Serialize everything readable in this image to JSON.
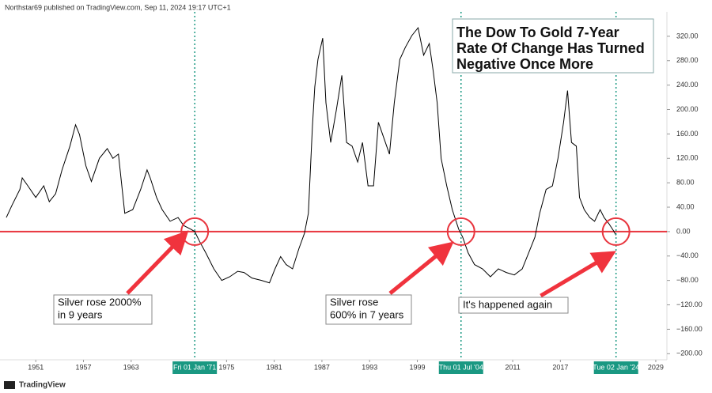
{
  "header": "Northstar69 published on TradingView.com, Sep 11, 2024 19:17 UTC+1",
  "footer": "TradingView",
  "chart_data": {
    "type": "line",
    "title": [
      "The Dow To Gold 7-Year",
      "Rate Of Change Has Turned",
      "Negative Once More"
    ],
    "color": "#000000",
    "x": [
      1947.3,
      1948,
      1949,
      1949.3,
      1950,
      1951,
      1952,
      1952.7,
      1953.5,
      1954.3,
      1955.3,
      1956,
      1956.5,
      1957.3,
      1958,
      1959,
      1960,
      1960.7,
      1961.4,
      1962.2,
      1963.2,
      1964.2,
      1965,
      1965.4,
      1966.2,
      1966.9,
      1967.9,
      1968.9,
      1969.6,
      1970.5,
      1971,
      1971.6,
      1972.4,
      1973.4,
      1974.4,
      1975.4,
      1976.4,
      1977.2,
      1978.2,
      1979.4,
      1980.4,
      1981.1,
      1981.8,
      1982.5,
      1983.3,
      1984.1,
      1984.8,
      1985.3,
      1985.8,
      1986.1,
      1986.5,
      1987.1,
      1987.5,
      1988.1,
      1988.8,
      1989.5,
      1990.1,
      1990.8,
      1991.5,
      1992.1,
      1992.8,
      1993.5,
      1994.1,
      1994.8,
      1995.5,
      1996.1,
      1996.8,
      1997.5,
      1998.3,
      1999.1,
      1999.8,
      2000.5,
      2001,
      2001.5,
      2002,
      2002.7,
      2003.4,
      2004.2,
      2004.7,
      2005.4,
      2006.2,
      2007.2,
      2008.2,
      2009.2,
      2010.2,
      2011.2,
      2012.2,
      2013,
      2013.8,
      2014.4,
      2015.2,
      2016,
      2016.7,
      2017.4,
      2017.9,
      2018.4,
      2019,
      2019.4,
      2020,
      2020.7,
      2021.3,
      2022,
      2022.5,
      2023.1,
      2023.7,
      2024
    ],
    "values": [
      23,
      43,
      69,
      88,
      75,
      56,
      75,
      49,
      62,
      101,
      140,
      175,
      159,
      108,
      82,
      120,
      136,
      120,
      127,
      30,
      36,
      69,
      101,
      88,
      56,
      36,
      17,
      23,
      10,
      4,
      0,
      -16,
      -35,
      -61,
      -80,
      -74,
      -65,
      -67,
      -76,
      -80,
      -84,
      -61,
      -41,
      -54,
      -61,
      -28,
      -3,
      30,
      172,
      237,
      282,
      317,
      211,
      146,
      198,
      256,
      146,
      140,
      114,
      146,
      75,
      75,
      179,
      153,
      127,
      211,
      282,
      302,
      321,
      334,
      289,
      308,
      263,
      211,
      120,
      75,
      36,
      4,
      -9,
      -35,
      -54,
      -61,
      -74,
      -61,
      -67,
      -71,
      -61,
      -35,
      -9,
      30,
      69,
      75,
      120,
      179,
      231,
      146,
      140,
      56,
      36,
      23,
      17,
      36,
      23,
      13,
      1,
      -6
    ],
    "xlim": [
      1946.5,
      2030.4
    ],
    "ylim": [
      -210,
      360
    ],
    "xticks": [
      1951,
      1957,
      1963,
      1975,
      1981,
      1987,
      1993,
      1999,
      2011,
      2017,
      2029
    ],
    "yticks": [
      {
        "value": 320,
        "label": "320.00"
      },
      {
        "value": 280,
        "label": "280.00"
      },
      {
        "value": 240,
        "label": "240.00"
      },
      {
        "value": 200,
        "label": "200.00"
      },
      {
        "value": 160,
        "label": "160.00"
      },
      {
        "value": 120,
        "label": "120.00"
      },
      {
        "value": 80,
        "label": "80.00"
      },
      {
        "value": 40,
        "label": "40.00"
      },
      {
        "value": 0,
        "label": "0.00"
      },
      {
        "value": -40,
        "label": "−40.00"
      },
      {
        "value": -80,
        "label": "−80.00"
      },
      {
        "value": -120,
        "label": "−120.00"
      },
      {
        "value": -160,
        "label": "−160.00"
      },
      {
        "value": -200,
        "label": "−200.00"
      }
    ],
    "hline": {
      "value": 0,
      "color": "#e8353e"
    },
    "markers": [
      {
        "value": 1971,
        "label": "Fri 01 Jan '71"
      },
      {
        "value": 2004.5,
        "label": "Thu 01 Jul '04"
      },
      {
        "value": 2024,
        "label": "Tue 02 Jan '24"
      }
    ],
    "marker_color": "#1a9882",
    "annotations": [
      [
        "Silver rose 2000%",
        "in 9 years"
      ],
      [
        "Silver rose",
        "600% in 7 years"
      ],
      [
        "It's happened again"
      ]
    ]
  }
}
